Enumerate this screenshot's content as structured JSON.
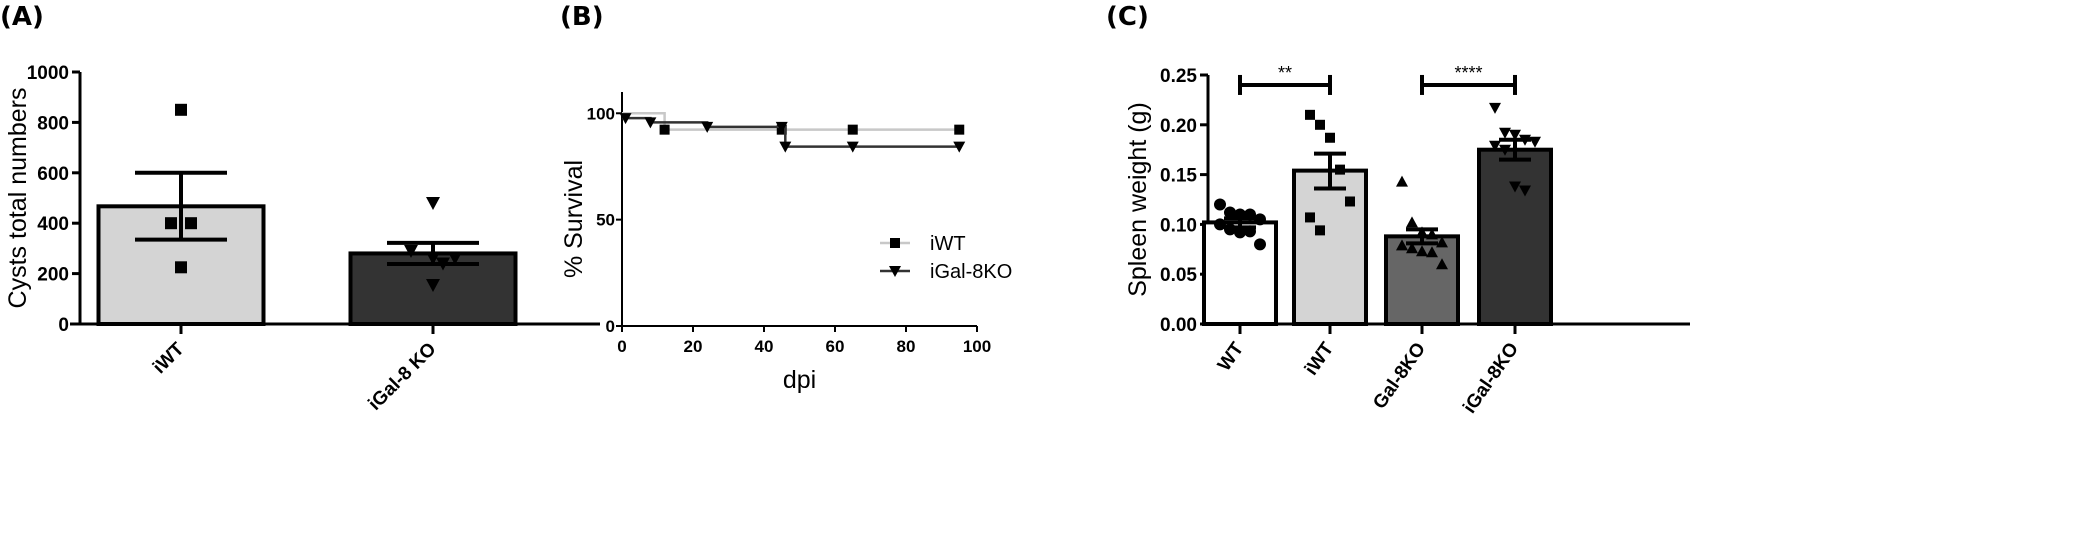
{
  "panels": {
    "a": {
      "label": "(A)"
    },
    "b": {
      "label": "(B)"
    },
    "c": {
      "label": "(C)"
    }
  },
  "colors": {
    "iwt_bar": "#d4d4d4",
    "igal_bar": "#333333",
    "wt_bar": "#ffffff",
    "gal_bar": "#666666",
    "iwt_line": "#c8c8c8",
    "igal_line": "#333333",
    "ink": "#000000"
  },
  "chart_data": [
    {
      "id": "A",
      "type": "bar",
      "title": "",
      "xlabel": "",
      "ylabel": "Cysts total numbers",
      "ylim": [
        0,
        1000
      ],
      "yticks": [
        "0",
        "200",
        "400",
        "600",
        "800",
        "1000"
      ],
      "categories": [
        "iWT",
        "iGal-8 KO"
      ],
      "values": [
        467,
        280
      ],
      "sem": [
        [
          335,
          600
        ],
        [
          238,
          322
        ]
      ],
      "points": [
        [
          850,
          400,
          400,
          225
        ],
        [
          480,
          290,
          262,
          262,
          240,
          155
        ]
      ],
      "markers": [
        "square",
        "triangle-down"
      ],
      "grid": false
    },
    {
      "id": "B",
      "type": "line",
      "subtype": "kaplan-meier",
      "title": "",
      "xlabel": "dpi",
      "ylabel": "% Survival",
      "xlim": [
        0,
        100
      ],
      "ylim": [
        0,
        110
      ],
      "xticks": [
        "0",
        "20",
        "40",
        "60",
        "80",
        "100"
      ],
      "yticks": [
        "0",
        "50",
        "100"
      ],
      "legend_position": "center-right",
      "series": [
        {
          "name": "iWT",
          "marker": "square",
          "steps": [
            [
              0,
              100
            ],
            [
              12,
              100
            ],
            [
              12,
              92.3
            ],
            [
              95,
              92.3
            ]
          ],
          "censor_x": [
            12,
            45,
            65,
            95
          ],
          "censor_y": [
            92.3,
            92.3,
            92.3,
            92.3
          ]
        },
        {
          "name": "iGal-8KO",
          "marker": "triangle-down",
          "steps": [
            [
              0,
              97.7
            ],
            [
              8,
              97.7
            ],
            [
              8,
              95.7
            ],
            [
              24,
              95.7
            ],
            [
              24,
              93.6
            ],
            [
              46,
              93.6
            ],
            [
              46,
              84.3
            ],
            [
              95,
              84.3
            ]
          ],
          "censor_x": [
            1,
            8,
            24,
            45,
            46,
            65,
            95
          ],
          "censor_y": [
            97.7,
            95.7,
            93.6,
            93.6,
            84.3,
            84.3,
            84.3
          ]
        }
      ],
      "grid": false
    },
    {
      "id": "C",
      "type": "bar",
      "title": "",
      "xlabel": "",
      "ylabel": "Spleen weight (g)",
      "ylim": [
        0,
        0.25
      ],
      "yticks": [
        "0.00",
        "0.05",
        "0.10",
        "0.15",
        "0.20",
        "0.25"
      ],
      "categories": [
        "WT",
        "iWT",
        "Gal-8KO",
        "iGal-8KO"
      ],
      "values": [
        0.102,
        0.154,
        0.088,
        0.175
      ],
      "sem": [
        [
          0.097,
          0.106
        ],
        [
          0.136,
          0.171
        ],
        [
          0.081,
          0.095
        ],
        [
          0.165,
          0.185
        ]
      ],
      "points": [
        [
          0.12,
          0.112,
          0.11,
          0.11,
          0.105,
          0.1,
          0.095,
          0.092,
          0.093,
          0.08
        ],
        [
          0.21,
          0.2,
          0.187,
          0.155,
          0.123,
          0.107,
          0.094
        ],
        [
          0.143,
          0.102,
          0.092,
          0.09,
          0.082,
          0.079,
          0.076,
          0.073,
          0.072,
          0.06
        ],
        [
          0.217,
          0.192,
          0.19,
          0.185,
          0.183,
          0.179,
          0.175,
          0.138,
          0.134
        ]
      ],
      "markers": [
        "circle",
        "square",
        "triangle-up",
        "triangle-down"
      ],
      "annotations": [
        {
          "text": "**",
          "from": "WT",
          "to": "iWT",
          "y": 0.24
        },
        {
          "text": "****",
          "from": "Gal-8KO",
          "to": "iGal-8KO",
          "y": 0.24
        }
      ],
      "grid": false
    }
  ]
}
